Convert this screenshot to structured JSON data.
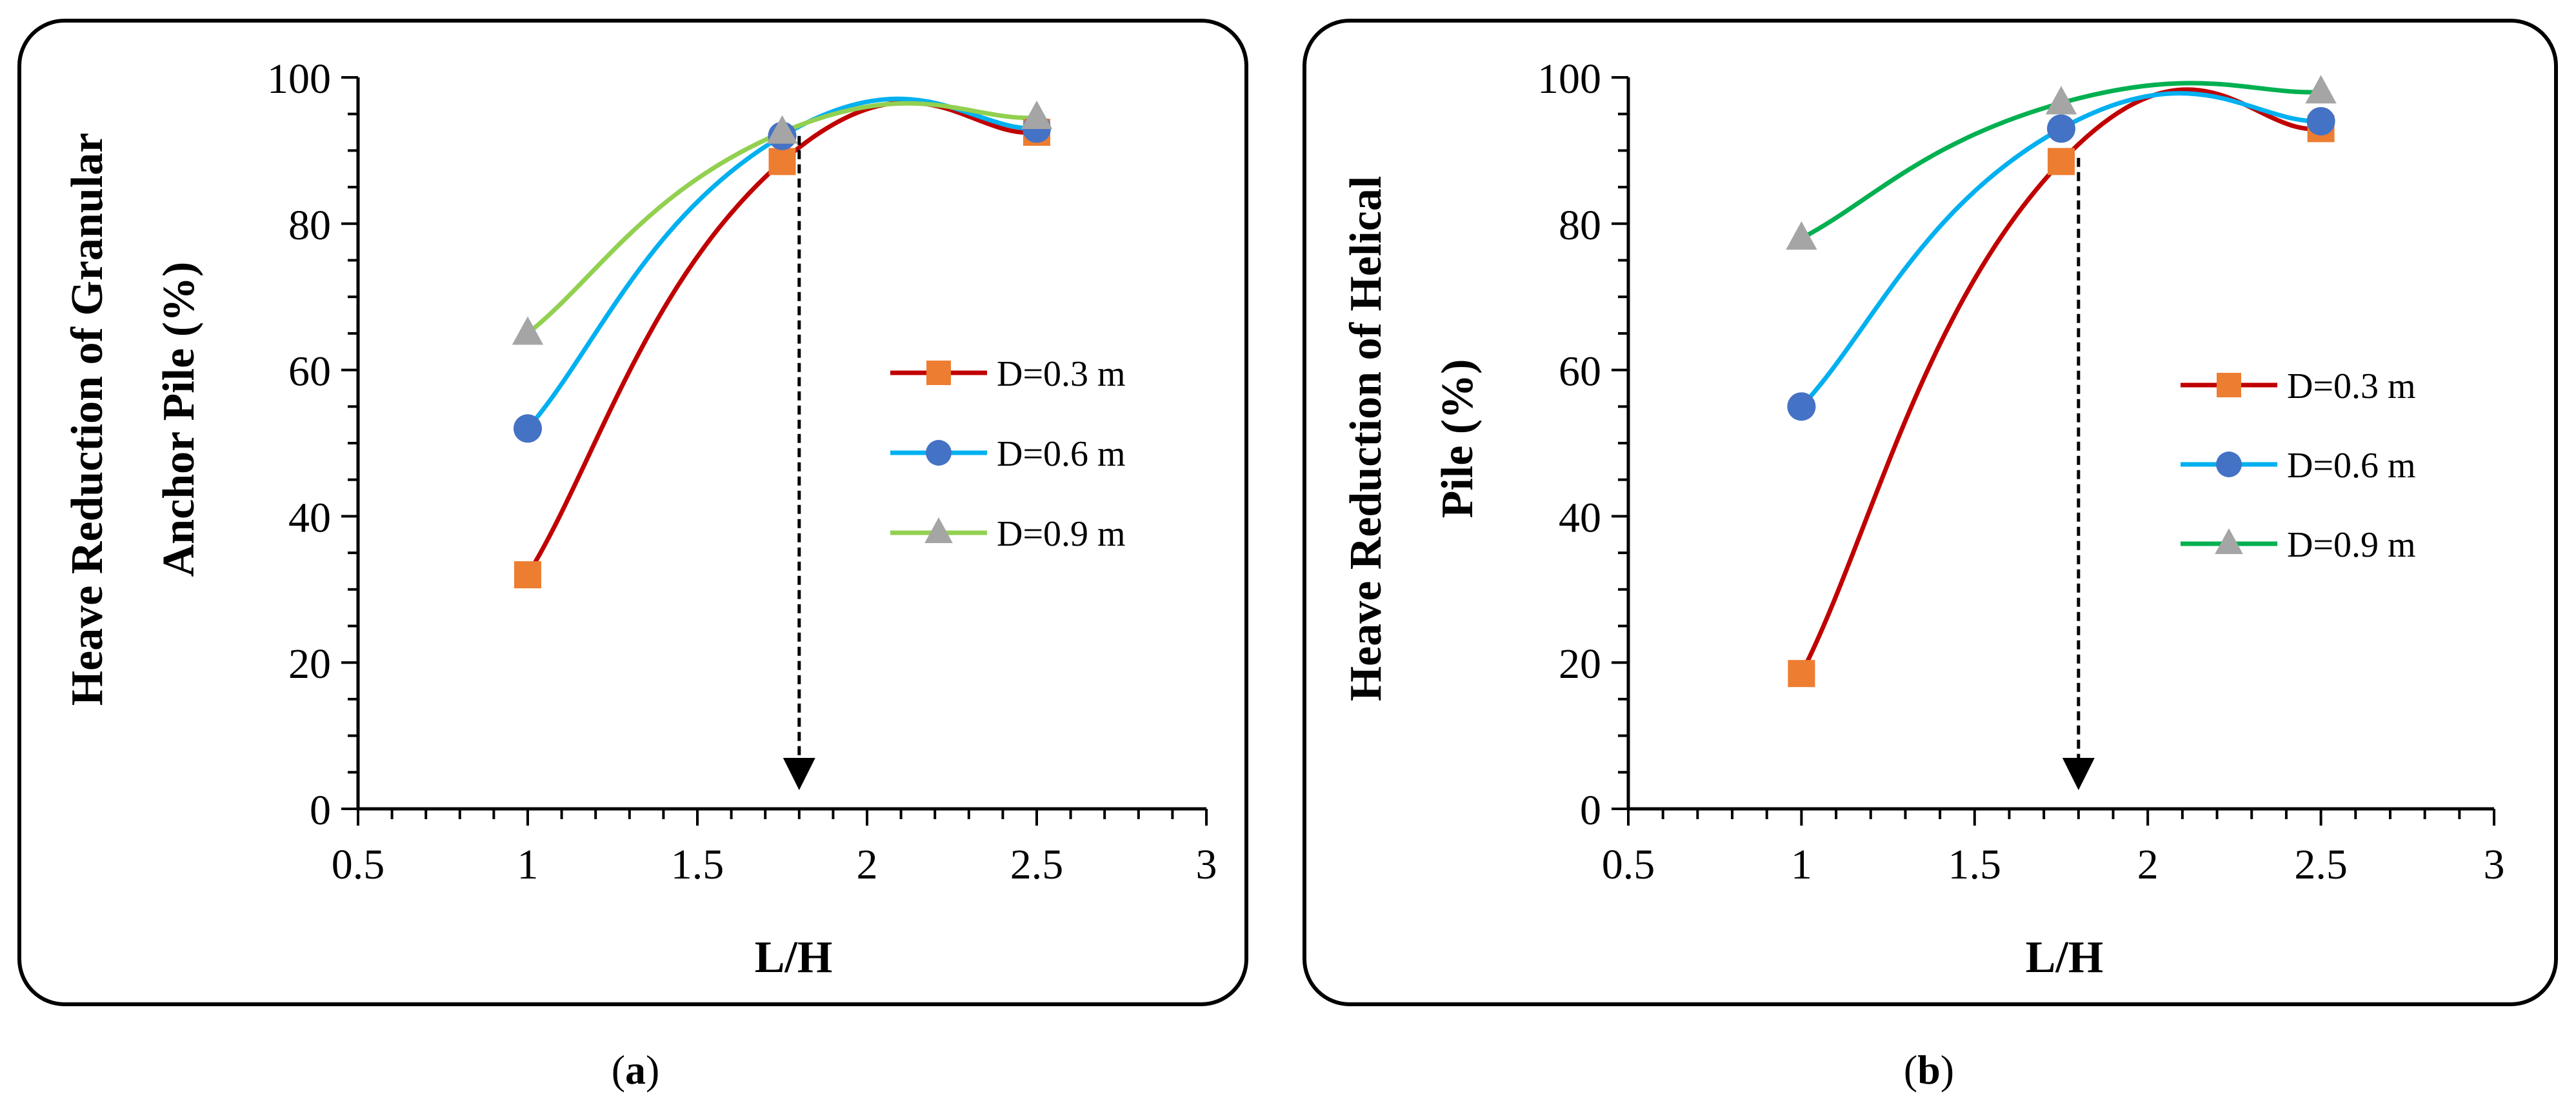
{
  "chart_data": [
    {
      "type": "line",
      "panel_label": "a",
      "xlabel": "L/H",
      "ylabel_lines": [
        "Heave Reduction of Granular",
        "Anchor Pile (%)"
      ],
      "xlim": [
        0.5,
        3
      ],
      "ylim": [
        0,
        100
      ],
      "xticks": [
        "0.5",
        "1",
        "1.5",
        "2",
        "2.5",
        "3"
      ],
      "yticks": [
        "0",
        "20",
        "40",
        "60",
        "80",
        "100"
      ],
      "annotation": {
        "type": "dashed-arrow",
        "x": 1.8,
        "from_y": 92,
        "to_y": 3
      },
      "legend_position": "right",
      "series": [
        {
          "name": "D=0.3 m",
          "marker": "square",
          "line_color": "#c00000",
          "marker_color": "#ed7d31",
          "x": [
            1,
            1.75,
            2.5
          ],
          "y": [
            32,
            88.5,
            92.5
          ]
        },
        {
          "name": "D=0.6 m",
          "marker": "circle",
          "line_color": "#00b0f0",
          "marker_color": "#4472c4",
          "x": [
            1,
            1.75,
            2.5
          ],
          "y": [
            52,
            92,
            93
          ]
        },
        {
          "name": "D=0.9 m",
          "marker": "triangle",
          "line_color": "#92d050",
          "marker_color": "#a5a5a5",
          "x": [
            1,
            1.75,
            2.5
          ],
          "y": [
            65,
            92.5,
            94.5
          ]
        }
      ]
    },
    {
      "type": "line",
      "panel_label": "b",
      "xlabel": "L/H",
      "ylabel_lines": [
        "Heave Reduction of Helical",
        "Pile (%)"
      ],
      "xlim": [
        0.5,
        3
      ],
      "ylim": [
        0,
        100
      ],
      "xticks": [
        "0.5",
        "1",
        "1.5",
        "2",
        "2.5",
        "3"
      ],
      "yticks": [
        "0",
        "20",
        "40",
        "60",
        "80",
        "100"
      ],
      "annotation": {
        "type": "dashed-arrow",
        "x": 1.8,
        "from_y": 89,
        "to_y": 3
      },
      "legend_position": "right",
      "series": [
        {
          "name": "D=0.3 m",
          "marker": "square",
          "line_color": "#c00000",
          "marker_color": "#ed7d31",
          "x": [
            1,
            1.75,
            2.5
          ],
          "y": [
            18.5,
            88.5,
            93
          ]
        },
        {
          "name": "D=0.6 m",
          "marker": "circle",
          "line_color": "#00b0f0",
          "marker_color": "#4472c4",
          "x": [
            1,
            1.75,
            2.5
          ],
          "y": [
            55,
            93,
            94
          ]
        },
        {
          "name": "D=0.9 m",
          "marker": "triangle",
          "line_color": "#00b050",
          "marker_color": "#a5a5a5",
          "x": [
            1,
            1.75,
            2.5
          ],
          "y": [
            78,
            96.5,
            98
          ]
        }
      ]
    }
  ]
}
